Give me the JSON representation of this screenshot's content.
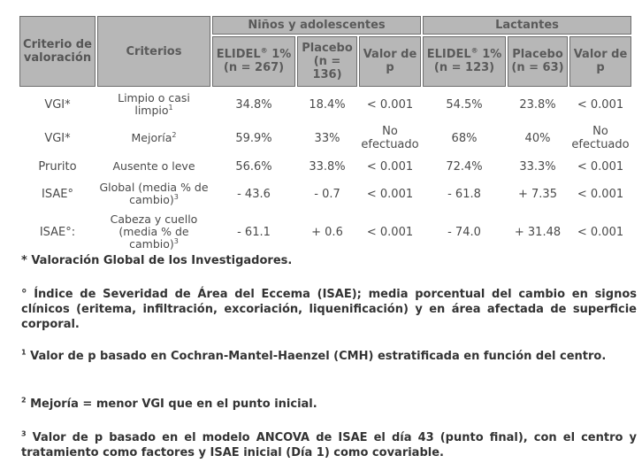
{
  "table": {
    "header": {
      "col_criterio_valoracion": "Criterio de valoración",
      "col_criterios": "Criterios",
      "group_ninos": "Niños y adolescentes",
      "group_lactantes": "Lactantes",
      "ninos_elidel": "ELIDEL",
      "ninos_elidel_reg": "®",
      "ninos_elidel_pct": " 1%",
      "ninos_elidel_n": "(n = 267)",
      "ninos_placebo": "Placebo (n = 136)",
      "ninos_valor_p": "Valor de p",
      "lact_elidel": "ELIDEL",
      "lact_elidel_reg": "®",
      "lact_elidel_pct": " 1%",
      "lact_elidel_n": "(n = 123)",
      "lact_placebo": "Placebo (n = 63)",
      "lact_valor_p": "Valor de p"
    },
    "rows": [
      {
        "criterio": "VGI*",
        "criterios": "Limpio o casi limpio",
        "criterios_sup": "1",
        "n_elidel": "34.8%",
        "n_placebo": "18.4%",
        "n_p": "< 0.001",
        "l_elidel": "54.5%",
        "l_placebo": "23.8%",
        "l_p": "< 0.001"
      },
      {
        "criterio": "VGI*",
        "criterios": "Mejoría",
        "criterios_sup": "2",
        "n_elidel": "59.9%",
        "n_placebo": "33%",
        "n_p": "No efectuado",
        "l_elidel": "68%",
        "l_placebo": "40%",
        "l_p": "No efectuado"
      },
      {
        "criterio": "Prurito",
        "criterios": "Ausente o leve",
        "criterios_sup": "",
        "n_elidel": "56.6%",
        "n_placebo": "33.8%",
        "n_p": "< 0.001",
        "l_elidel": "72.4%",
        "l_placebo": "33.3%",
        "l_p": "< 0.001"
      },
      {
        "criterio": "ISAE°",
        "criterios": "Global (media % de cambio)",
        "criterios_sup": "3",
        "n_elidel": "- 43.6",
        "n_placebo": "- 0.7",
        "n_p": "< 0.001",
        "l_elidel": "- 61.8",
        "l_placebo": "+ 7.35",
        "l_p": "< 0.001"
      },
      {
        "criterio": "ISAE°:",
        "criterios": "Cabeza y cuello (media % de cambio)",
        "criterios_sup": "3",
        "n_elidel": "- 61.1",
        "n_placebo": "+ 0.6",
        "n_p": "< 0.001",
        "l_elidel": "- 74.0",
        "l_placebo": "+ 31.48",
        "l_p": "< 0.001"
      }
    ]
  },
  "notes": {
    "note_vgi": "* Valoración Global de los Investigadores.",
    "note_isae": "° Índice de Severidad de Área del Eccema (ISAE); media porcentual del cambio en signos clínicos (eritema, infiltración, excoriación, liquenificación) y en área afectada de superficie corporal.",
    "note_1_sup": "1",
    "note_1": " Valor de p basado en Cochran-Mantel-Haenzel (CMH) estratificada en función del centro.",
    "note_2_sup": "2",
    "note_2": " Mejoría = menor VGI que en el punto inicial.",
    "note_3_sup": "3",
    "note_3": " Valor de p basado en el modelo ANCOVA de ISAE el día 43 (punto final), con el centro y tratamiento como factores y ISAE inicial (Día 1) como covariable."
  }
}
